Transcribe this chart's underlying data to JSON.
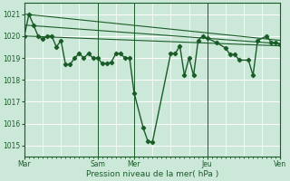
{
  "background_color": "#cce8d8",
  "grid_color": "#b8d8c8",
  "line_color": "#1a5c28",
  "xlabel": "Pression niveau de la mer( hPa )",
  "ylim": [
    1014.5,
    1021.5
  ],
  "yticks": [
    1015,
    1016,
    1017,
    1018,
    1019,
    1020,
    1021
  ],
  "xlim": [
    0,
    336
  ],
  "day_positions": [
    0,
    96,
    144,
    240,
    336
  ],
  "day_names": [
    "Mar",
    "Sam",
    "Mer",
    "Jeu",
    "Ven"
  ],
  "trend1_x": [
    0,
    336
  ],
  "trend1_y": [
    1021.0,
    1019.8
  ],
  "trend2_x": [
    0,
    336
  ],
  "trend2_y": [
    1020.5,
    1019.65
  ],
  "trend3_x": [
    0,
    336
  ],
  "trend3_y": [
    1020.0,
    1019.55
  ],
  "main_x": [
    0,
    6,
    12,
    18,
    24,
    30,
    36,
    42,
    48,
    54,
    60,
    66,
    72,
    78,
    84,
    90,
    96,
    102,
    108,
    114,
    120,
    126,
    132,
    138,
    144,
    156,
    162,
    168,
    192,
    198,
    204,
    210,
    216,
    222,
    228,
    234,
    240,
    252,
    264,
    270,
    276,
    282,
    294,
    300,
    306,
    318,
    324,
    330,
    336
  ],
  "main_y": [
    1020.0,
    1021.0,
    1020.5,
    1020.0,
    1019.85,
    1020.0,
    1020.0,
    1019.5,
    1019.8,
    1018.7,
    1018.7,
    1019.0,
    1019.2,
    1019.0,
    1019.2,
    1019.0,
    1019.0,
    1018.75,
    1018.75,
    1018.8,
    1019.2,
    1019.2,
    1019.0,
    1019.0,
    1017.4,
    1015.8,
    1015.2,
    1015.15,
    1019.2,
    1019.2,
    1019.55,
    1018.2,
    1019.0,
    1018.2,
    1019.8,
    1020.0,
    1019.9,
    1019.7,
    1019.45,
    1019.15,
    1019.15,
    1018.9,
    1018.9,
    1018.2,
    1019.8,
    1020.0,
    1019.7,
    1019.7,
    1019.6
  ]
}
